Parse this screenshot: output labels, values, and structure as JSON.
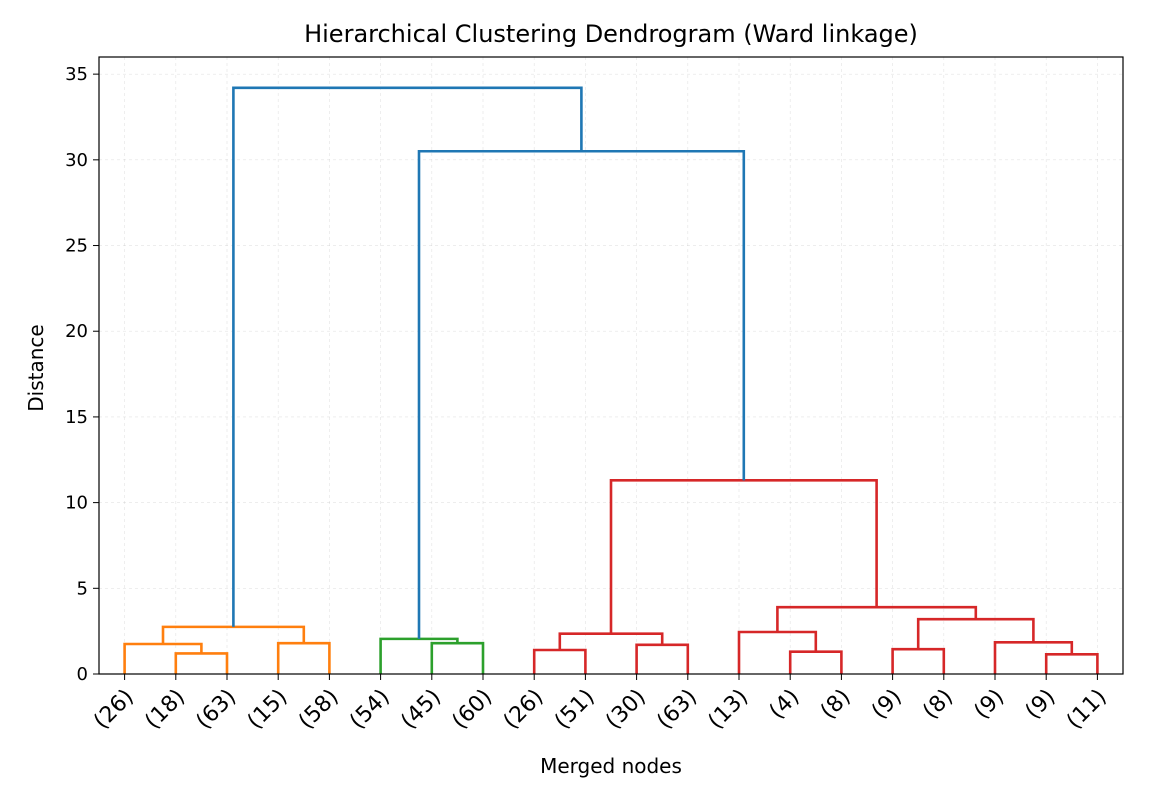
{
  "chart_data": {
    "type": "dendrogram",
    "title": "Hierarchical Clustering Dendrogram (Ward linkage)",
    "xlabel": "Merged nodes",
    "ylabel": "Distance",
    "ylim": [
      0,
      36
    ],
    "yticks": [
      0,
      5,
      10,
      15,
      20,
      25,
      30,
      35
    ],
    "grid": true,
    "leaf_labels": [
      "(26)",
      "(18)",
      "(63)",
      "(15)",
      "(58)",
      "(54)",
      "(45)",
      "(60)",
      "(26)",
      "(51)",
      "(30)",
      "(63)",
      "(13)",
      "(4)",
      "(8)",
      "(9)",
      "(8)",
      "(9)",
      "(9)",
      "(11)"
    ],
    "colors": {
      "cluster1": "#ff7f0e",
      "cluster2": "#2ca02c",
      "cluster3": "#d62728",
      "above_threshold": "#1f77b4"
    },
    "links": [
      {
        "color": "#ff7f0e",
        "icoord": [
          15,
          15,
          25,
          25
        ],
        "dcoord": [
          0,
          1.2,
          1.2,
          0
        ]
      },
      {
        "color": "#ff7f0e",
        "icoord": [
          5,
          5,
          20,
          20
        ],
        "dcoord": [
          0,
          1.75,
          1.75,
          1.2
        ]
      },
      {
        "color": "#ff7f0e",
        "icoord": [
          35,
          35,
          45,
          45
        ],
        "dcoord": [
          0,
          1.8,
          1.8,
          0
        ]
      },
      {
        "color": "#ff7f0e",
        "icoord": [
          12.5,
          12.5,
          40,
          40
        ],
        "dcoord": [
          1.75,
          2.75,
          2.75,
          1.8
        ]
      },
      {
        "color": "#2ca02c",
        "icoord": [
          65,
          65,
          75,
          75
        ],
        "dcoord": [
          0,
          1.8,
          1.8,
          0
        ]
      },
      {
        "color": "#2ca02c",
        "icoord": [
          55,
          55,
          70,
          70
        ],
        "dcoord": [
          0,
          2.05,
          2.05,
          1.8
        ]
      },
      {
        "color": "#d62728",
        "icoord": [
          85,
          85,
          95,
          95
        ],
        "dcoord": [
          0,
          1.4,
          1.4,
          0
        ]
      },
      {
        "color": "#d62728",
        "icoord": [
          105,
          105,
          115,
          115
        ],
        "dcoord": [
          0,
          1.7,
          1.7,
          0
        ]
      },
      {
        "color": "#d62728",
        "icoord": [
          90,
          90,
          110,
          110
        ],
        "dcoord": [
          1.4,
          2.35,
          2.35,
          1.7
        ]
      },
      {
        "color": "#d62728",
        "icoord": [
          135,
          135,
          145,
          145
        ],
        "dcoord": [
          0,
          1.3,
          1.3,
          0
        ]
      },
      {
        "color": "#d62728",
        "icoord": [
          125,
          125,
          140,
          140
        ],
        "dcoord": [
          0,
          2.45,
          2.45,
          1.3
        ]
      },
      {
        "color": "#d62728",
        "icoord": [
          155,
          155,
          165,
          165
        ],
        "dcoord": [
          0,
          1.45,
          1.45,
          0
        ]
      },
      {
        "color": "#d62728",
        "icoord": [
          185,
          185,
          195,
          195
        ],
        "dcoord": [
          0,
          1.15,
          1.15,
          0
        ]
      },
      {
        "color": "#d62728",
        "icoord": [
          175,
          175,
          190,
          190
        ],
        "dcoord": [
          0,
          1.85,
          1.85,
          1.15
        ]
      },
      {
        "color": "#d62728",
        "icoord": [
          160,
          160,
          182.5,
          182.5
        ],
        "dcoord": [
          1.45,
          3.2,
          3.2,
          1.85
        ]
      },
      {
        "color": "#d62728",
        "icoord": [
          132.5,
          132.5,
          171.25,
          171.25
        ],
        "dcoord": [
          2.45,
          3.9,
          3.9,
          3.2
        ]
      },
      {
        "color": "#d62728",
        "icoord": [
          100,
          100,
          151.875,
          151.875
        ],
        "dcoord": [
          2.35,
          11.3,
          11.3,
          3.9
        ]
      },
      {
        "color": "#1f77b4",
        "icoord": [
          62.5,
          62.5,
          125.9375,
          125.9375
        ],
        "dcoord": [
          2.05,
          30.5,
          30.5,
          11.3
        ]
      },
      {
        "color": "#1f77b4",
        "icoord": [
          26.25,
          26.25,
          94.21875,
          94.21875
        ],
        "dcoord": [
          2.75,
          34.2,
          34.2,
          30.5
        ]
      }
    ]
  }
}
